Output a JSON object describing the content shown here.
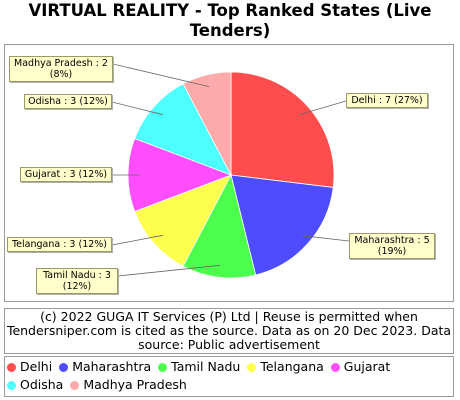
{
  "chart_data": {
    "type": "pie",
    "title": "VIRTUAL REALITY - Top Ranked States (Live Tenders)",
    "slices": [
      {
        "name": "Delhi",
        "value": 7,
        "label": "Delhi : 7 (27%)",
        "color": "#ff4d4d"
      },
      {
        "name": "Maharashtra",
        "value": 5,
        "label": "Maharashtra : 5 (19%)",
        "color": "#4d4dff"
      },
      {
        "name": "Tamil Nadu",
        "value": 3,
        "label": "Tamil Nadu : 3 (12%)",
        "color": "#4dff4d"
      },
      {
        "name": "Telangana",
        "value": 3,
        "label": "Telangana : 3 (12%)",
        "color": "#ffff4d"
      },
      {
        "name": "Gujarat",
        "value": 3,
        "label": "Gujarat : 3 (12%)",
        "color": "#ff4dff"
      },
      {
        "name": "Odisha",
        "value": 3,
        "label": "Odisha : 3 (12%)",
        "color": "#4dffff"
      },
      {
        "name": "Madhya Pradesh",
        "value": 2,
        "label": "Madhya Pradesh : 2 (8%)",
        "color": "#ffaaaa"
      }
    ],
    "legend_position": "bottom"
  },
  "source_text": "(c) 2022 GUGA IT Services (P) Ltd | Reuse is permitted when Tendersniper.com is cited as the source. Data as on 20 Dec 2023. Data source: Public advertisement"
}
